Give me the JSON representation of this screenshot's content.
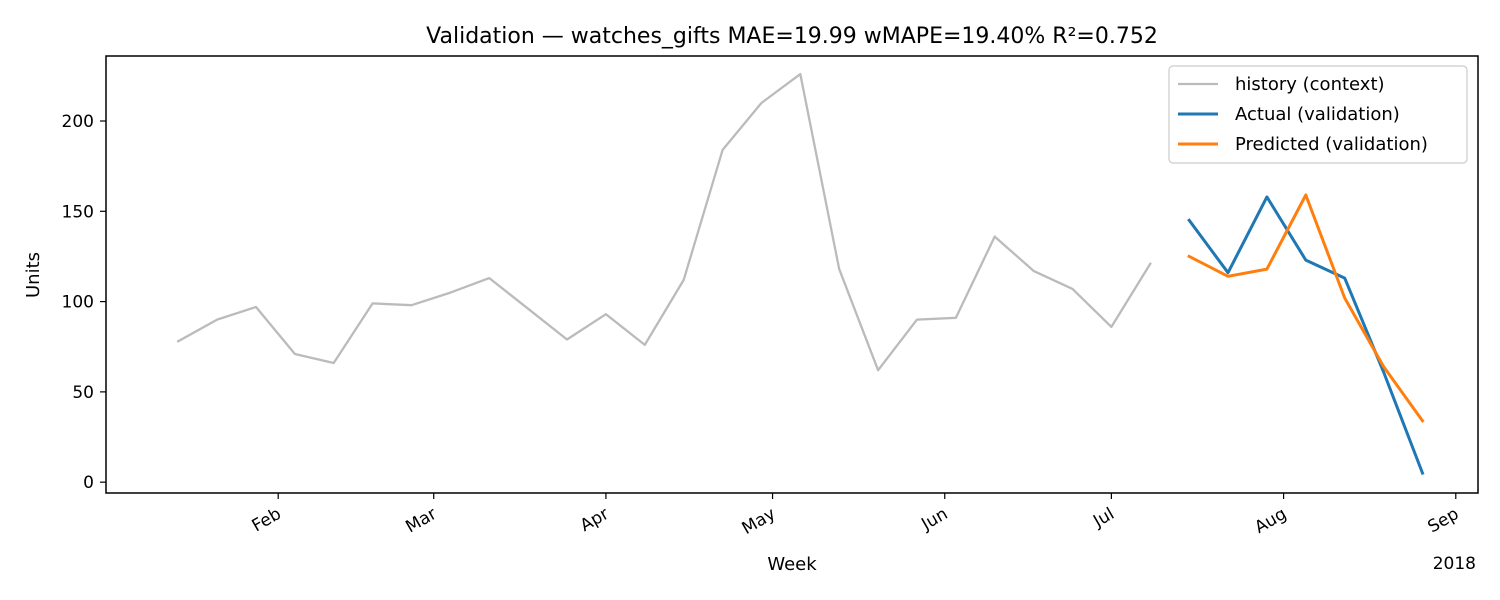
{
  "chart_data": {
    "type": "line",
    "title": "Validation — watches_gifts   MAE=19.99  wMAPE=19.40%  R²=0.752",
    "xlabel": "Week",
    "ylabel": "Units",
    "x_offset_label": "2018",
    "xlim": [
      "2018-01-01",
      "2018-09-05"
    ],
    "ylim": [
      -6,
      236
    ],
    "y_ticks": [
      0,
      50,
      100,
      150,
      200
    ],
    "x_ticks": [
      {
        "date": "2018-02-01",
        "label": "Feb"
      },
      {
        "date": "2018-03-01",
        "label": "Mar"
      },
      {
        "date": "2018-04-01",
        "label": "Apr"
      },
      {
        "date": "2018-05-01",
        "label": "May"
      },
      {
        "date": "2018-06-01",
        "label": "Jun"
      },
      {
        "date": "2018-07-01",
        "label": "Jul"
      },
      {
        "date": "2018-08-01",
        "label": "Aug"
      },
      {
        "date": "2018-09-01",
        "label": "Sep"
      }
    ],
    "grid": false,
    "legend_position": "top-right",
    "series": [
      {
        "name": "history (context)",
        "color": "#bbbbbb",
        "x": [
          "2018-01-14",
          "2018-01-21",
          "2018-01-28",
          "2018-02-04",
          "2018-02-11",
          "2018-02-18",
          "2018-02-25",
          "2018-03-04",
          "2018-03-11",
          "2018-03-18",
          "2018-03-25",
          "2018-04-01",
          "2018-04-08",
          "2018-04-15",
          "2018-04-22",
          "2018-04-29",
          "2018-05-06",
          "2018-05-13",
          "2018-05-20",
          "2018-05-27",
          "2018-06-03",
          "2018-06-10",
          "2018-06-17",
          "2018-06-24",
          "2018-07-01",
          "2018-07-08"
        ],
        "values": [
          78,
          90,
          97,
          71,
          66,
          99,
          98,
          105,
          113,
          96,
          79,
          93,
          76,
          112,
          184,
          210,
          226,
          118,
          62,
          90,
          91,
          136,
          117,
          107,
          86,
          121
        ]
      },
      {
        "name": "Actual (validation)",
        "color": "#1f77b4",
        "x": [
          "2018-07-15",
          "2018-07-22",
          "2018-07-29",
          "2018-08-05",
          "2018-08-12",
          "2018-08-19",
          "2018-08-26"
        ],
        "values": [
          145,
          116,
          158,
          123,
          113,
          61,
          5
        ]
      },
      {
        "name": "Predicted (validation)",
        "color": "#ff7f0e",
        "x": [
          "2018-07-15",
          "2018-07-22",
          "2018-07-29",
          "2018-08-05",
          "2018-08-12",
          "2018-08-19",
          "2018-08-26"
        ],
        "values": [
          125,
          114,
          118,
          159,
          102,
          64,
          34
        ]
      }
    ]
  }
}
